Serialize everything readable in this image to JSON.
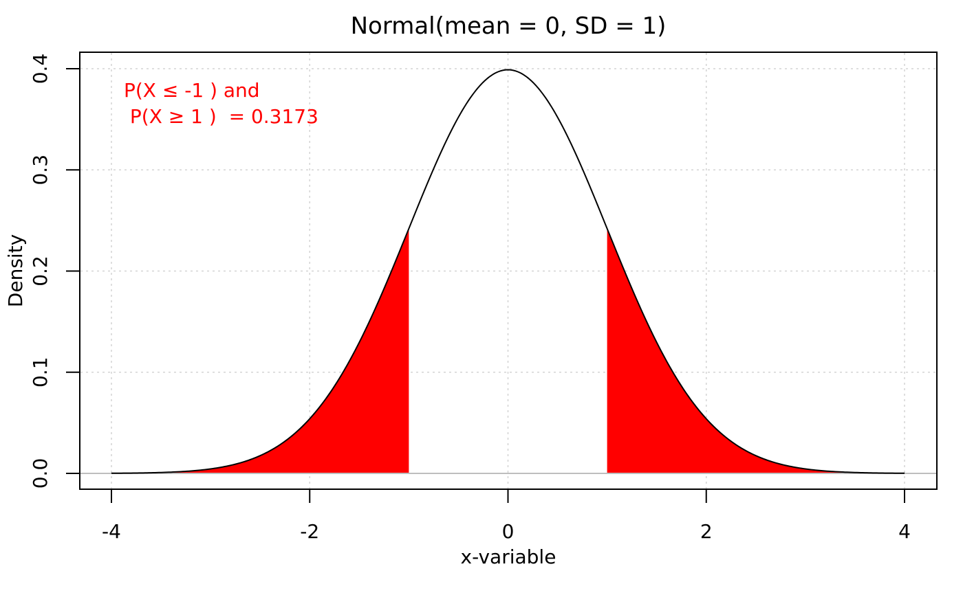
{
  "chart_data": {
    "type": "area",
    "title": "Normal(mean = 0,   SD = 1)",
    "xlabel": "x-variable",
    "ylabel": "Density",
    "distribution": "normal",
    "mean": 0,
    "sd": 1,
    "xlim": [
      -4,
      4
    ],
    "ylim": [
      0,
      0.4
    ],
    "x_ticks": [
      "-4",
      "-2",
      "0",
      "2",
      "4"
    ],
    "y_ticks": [
      "0.0",
      "0.1",
      "0.2",
      "0.3",
      "0.4"
    ],
    "grid": true,
    "shaded_regions": [
      {
        "from": -4,
        "to": -1
      },
      {
        "from": 1,
        "to": 4
      }
    ],
    "annotation": {
      "lines": [
        "P(X ≤ -1 ) and",
        " P(X ≥ 1 )  = 0.3173"
      ],
      "probability": 0.3173
    },
    "colors": {
      "curve": "#000000",
      "shade": "#ff0000",
      "annotation": "#ff0000",
      "grid": "#d3d3d3",
      "baseline": "#bebebe"
    }
  }
}
